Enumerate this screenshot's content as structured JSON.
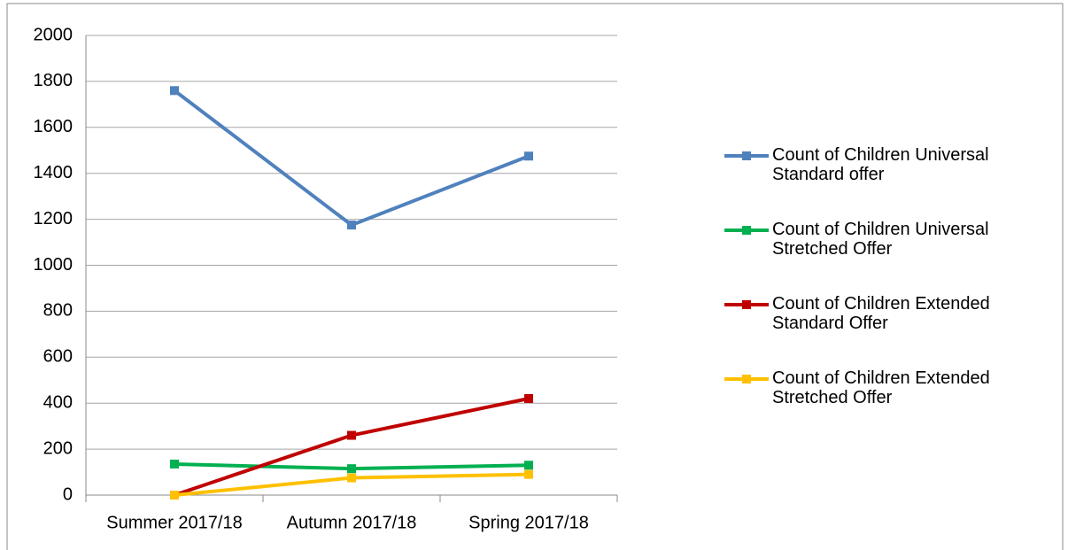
{
  "chart_data": {
    "type": "line",
    "categories": [
      "Summer 2017/18",
      "Autumn 2017/18",
      "Spring 2017/18"
    ],
    "series": [
      {
        "name": "Count of Children Universal Standard offer",
        "color": "#4f81bd",
        "values": [
          1760,
          1175,
          1475
        ]
      },
      {
        "name": "Count of Children Universal Stretched Offer",
        "color": "#00b050",
        "values": [
          135,
          115,
          130
        ]
      },
      {
        "name": "Count of Children Extended Standard Offer",
        "color": "#c00000",
        "values": [
          0,
          260,
          420
        ]
      },
      {
        "name": "Count of Children Extended Stretched Offer",
        "color": "#ffc000",
        "values": [
          0,
          75,
          90
        ]
      }
    ],
    "ylim": [
      0,
      2000
    ],
    "yticks": [
      0,
      200,
      400,
      600,
      800,
      1000,
      1200,
      1400,
      1600,
      1800,
      2000
    ],
    "grid": true,
    "legend": "right"
  }
}
